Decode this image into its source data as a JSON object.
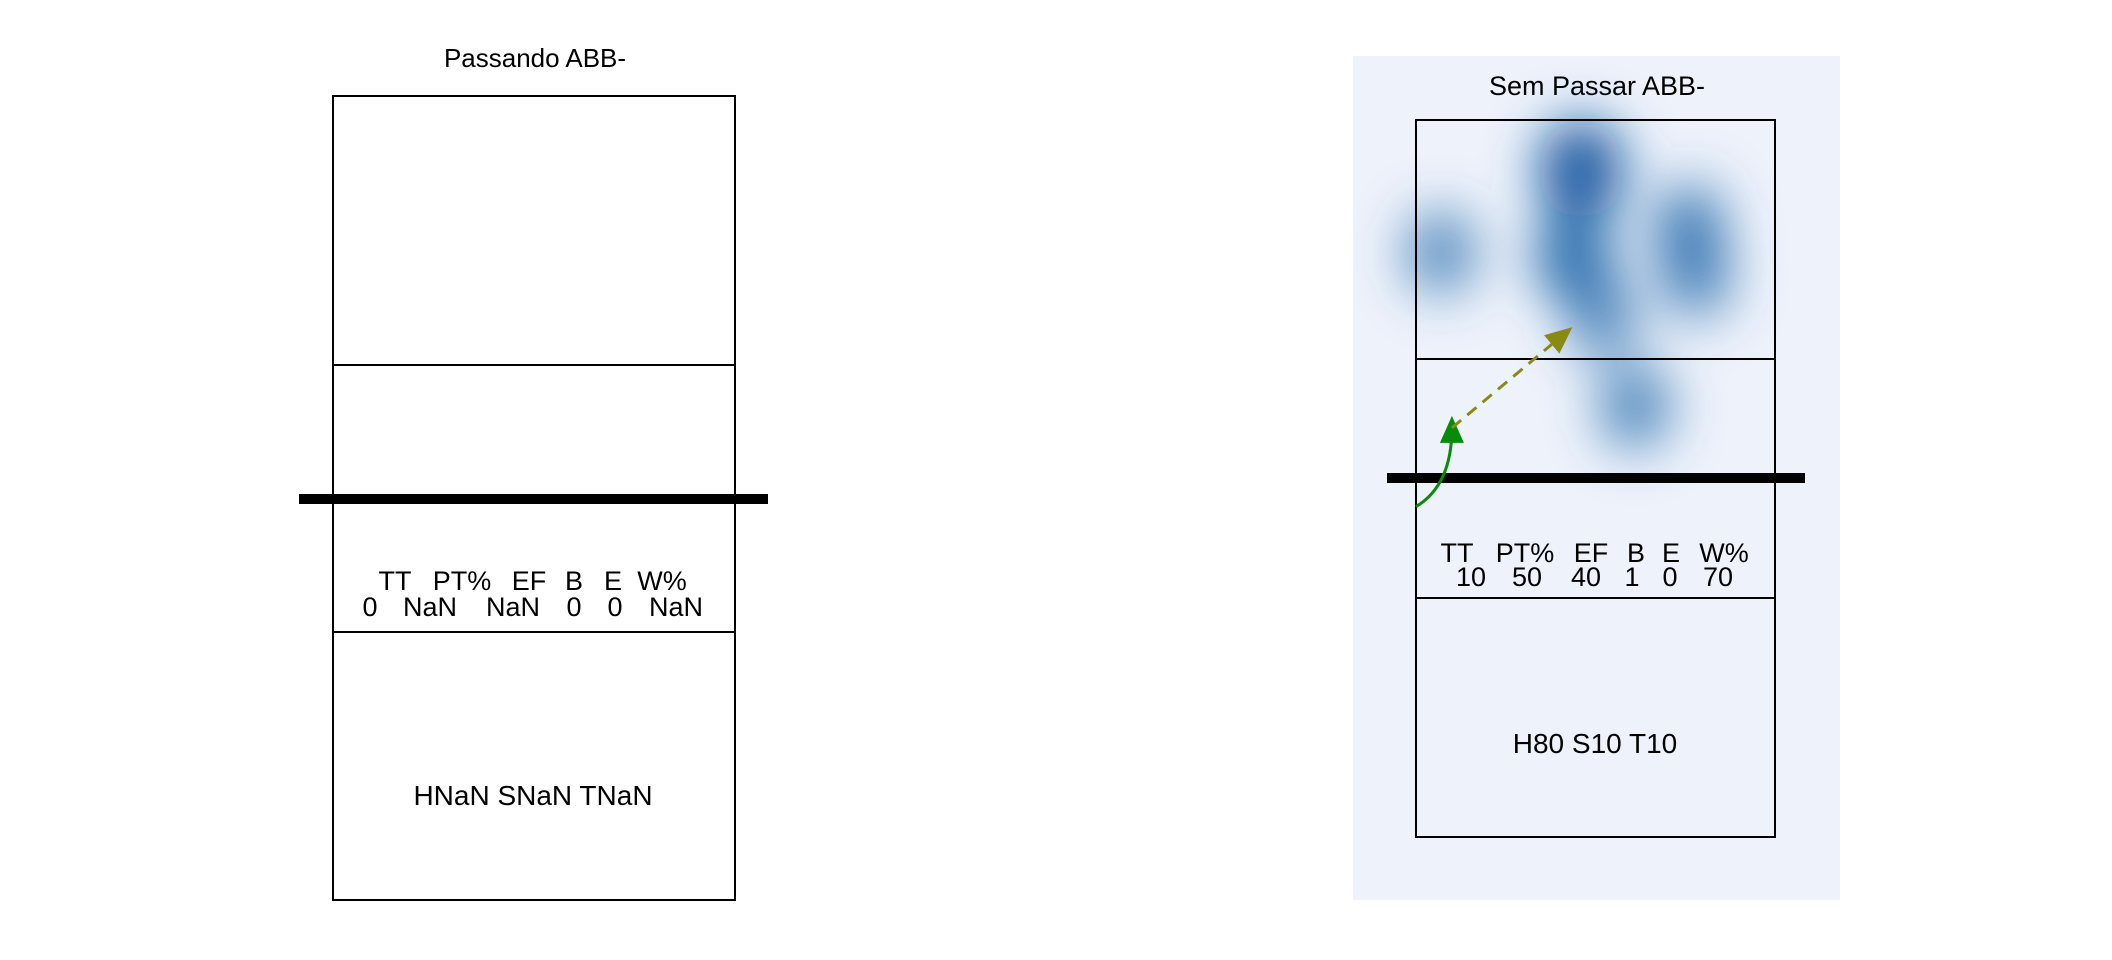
{
  "chart_data": [
    {
      "type": "heatmap",
      "title": "Passando ABB-",
      "stats": {
        "headers": [
          "TT",
          "PT%",
          "EF",
          "B",
          "E",
          "W%"
        ],
        "values": [
          "0",
          "NaN",
          "NaN",
          "0",
          "0",
          "NaN"
        ]
      },
      "summary": "HNaN SNaN TNaN",
      "background": "#ffffff",
      "hotspots": [],
      "trajectories": []
    },
    {
      "type": "heatmap",
      "title": "Sem Passar ABB-",
      "stats": {
        "headers": [
          "TT",
          "PT%",
          "EF",
          "B",
          "E",
          "W%"
        ],
        "values": [
          "10",
          "50",
          "40",
          "1",
          "0",
          "70"
        ]
      },
      "summary": "H80 S10 T10",
      "background": "#edf2fb",
      "heat_color": "#08519c",
      "hotspots": [
        {
          "x": 0.46,
          "y": 0.14,
          "intensity": 1.0
        },
        {
          "x": 0.44,
          "y": 0.38,
          "intensity": 0.75
        },
        {
          "x": 0.52,
          "y": 0.55,
          "intensity": 0.45
        },
        {
          "x": 0.76,
          "y": 0.3,
          "intensity": 0.55
        },
        {
          "x": 0.78,
          "y": 0.44,
          "intensity": 0.45
        },
        {
          "x": 0.61,
          "y": 0.8,
          "intensity": 0.5
        },
        {
          "x": 0.07,
          "y": 0.37,
          "intensity": 0.45
        }
      ],
      "trajectories": [
        {
          "from": [
            0.0,
            1.08
          ],
          "via": [
            0.1,
            1.02
          ],
          "to": [
            0.1,
            0.86
          ],
          "color": "#0a8a0a",
          "style": "solid"
        },
        {
          "from": [
            0.1,
            0.86
          ],
          "to": [
            0.41,
            0.6
          ],
          "color": "#8a8a12",
          "style": "dashed"
        }
      ]
    }
  ]
}
